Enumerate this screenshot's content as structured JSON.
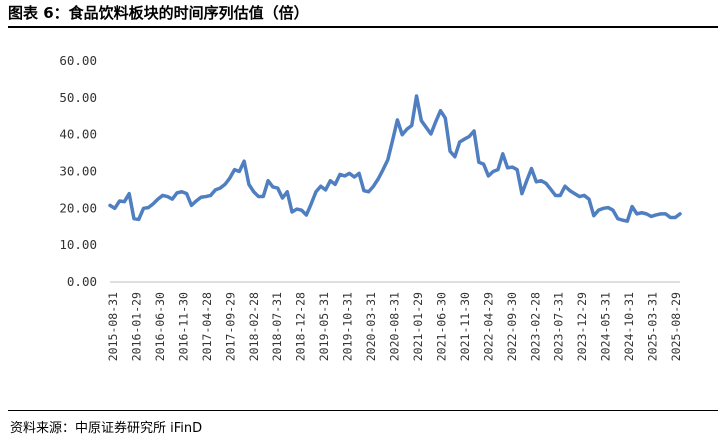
{
  "figure": {
    "title": "图表 6：食品饮料板块的时间序列估值（倍）",
    "source": "资料来源：中原证券研究所 iFinD"
  },
  "chart_data": {
    "type": "line",
    "title": "图表 6：食品饮料板块的时间序列估值（倍）",
    "xlabel": "",
    "ylabel": "",
    "ylim": [
      0,
      60
    ],
    "yticks": [
      "0.00",
      "10.00",
      "20.00",
      "30.00",
      "40.00",
      "50.00",
      "60.00"
    ],
    "xticks": [
      "2015-08-31",
      "2016-01-29",
      "2016-06-30",
      "2016-11-30",
      "2017-04-28",
      "2017-09-29",
      "2018-02-28",
      "2018-07-31",
      "2018-12-28",
      "2019-05-31",
      "2019-10-31",
      "2020-03-31",
      "2020-08-31",
      "2021-01-29",
      "2021-06-30",
      "2021-11-30",
      "2022-04-29",
      "2022-09-30",
      "2023-02-28",
      "2023-07-31",
      "2023-12-29",
      "2024-05-31",
      "2024-10-31",
      "2025-03-31",
      "2025-08-29"
    ],
    "grid": false,
    "legend": "none",
    "line_color": "#4F7FC0",
    "series": [
      {
        "values": [
          20.8,
          20.0,
          22.0,
          21.8,
          24.0,
          17.2,
          17.0,
          20.0,
          20.2,
          21.2,
          22.5,
          23.5,
          23.2,
          22.5,
          24.2,
          24.5,
          24.0,
          20.8,
          22.0,
          23.0,
          23.2,
          23.5,
          25.0,
          25.5,
          26.5,
          28.2,
          30.5,
          30.0,
          32.8,
          26.5,
          24.5,
          23.2,
          23.2,
          27.5,
          25.8,
          25.5,
          22.8,
          24.5,
          19.0,
          19.8,
          19.5,
          18.2,
          21.2,
          24.5,
          26.0,
          25.0,
          27.5,
          26.5,
          29.2,
          28.8,
          29.5,
          28.5,
          29.5,
          24.8,
          24.5,
          26.0,
          28.0,
          30.5,
          33.2,
          38.5,
          44.0,
          40.0,
          41.5,
          42.5,
          50.5,
          43.8,
          42.0,
          40.2,
          43.5,
          46.5,
          44.5,
          35.5,
          34.0,
          38.0,
          38.8,
          39.5,
          41.0,
          32.5,
          32.0,
          28.8,
          30.0,
          30.5,
          34.8,
          31.0,
          31.2,
          30.5,
          24.0,
          27.5,
          30.8,
          27.2,
          27.5,
          26.8,
          25.2,
          23.5,
          23.5,
          26.0,
          24.8,
          24.0,
          23.2,
          23.5,
          22.5,
          18.0,
          19.5,
          20.0,
          20.2,
          19.5,
          17.2,
          16.8,
          16.5,
          20.5,
          18.5,
          18.8,
          18.5,
          17.8,
          18.2,
          18.5,
          18.5,
          17.5,
          17.5,
          18.5
        ]
      }
    ]
  }
}
